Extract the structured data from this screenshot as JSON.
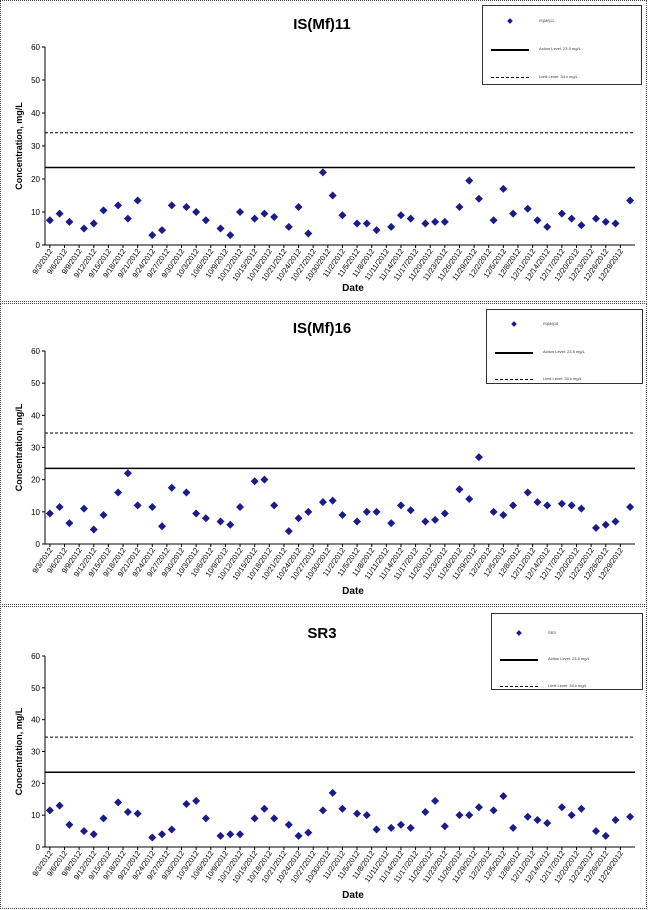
{
  "chart_data": [
    {
      "type": "scatter",
      "title": "IS(Mf)11",
      "xlabel": "Date",
      "ylabel": "Concentration, mg/L",
      "ylim": [
        0,
        60
      ],
      "yticks": [
        0,
        10,
        20,
        30,
        40,
        50,
        60
      ],
      "xtick_labels": [
        "9/3/2012",
        "9/6/2012",
        "9/9/2012",
        "9/12/2012",
        "9/15/2012",
        "9/18/2012",
        "9/21/2012",
        "9/24/2012",
        "9/27/2012",
        "9/30/2012",
        "10/3/2012",
        "10/6/2012",
        "10/9/2012",
        "10/12/2012",
        "10/15/2012",
        "10/18/2012",
        "10/21/2012",
        "10/24/2012",
        "10/27/2012",
        "10/30/2012",
        "11/2/2012",
        "11/5/2012",
        "11/8/2012",
        "11/11/2012",
        "11/14/2012",
        "11/17/2012",
        "11/20/2012",
        "11/23/2012",
        "11/26/2012",
        "11/29/2012",
        "12/2/2012",
        "12/5/2012",
        "12/8/2012",
        "12/11/2012",
        "12/14/2012",
        "12/17/2012",
        "12/20/2012",
        "12/23/2012",
        "12/26/2012",
        "12/29/2012"
      ],
      "series": [
        {
          "name": "IS(Mf)11",
          "color": "#1b1b8a",
          "x": [
            "9/3/2012",
            "9/5/2012",
            "9/7/2012",
            "9/10/2012",
            "9/12/2012",
            "9/14/2012",
            "9/17/2012",
            "9/19/2012",
            "9/21/2012",
            "9/24/2012",
            "9/26/2012",
            "9/28/2012",
            "10/1/2012",
            "10/3/2012",
            "10/5/2012",
            "10/8/2012",
            "10/10/2012",
            "10/12/2012",
            "10/15/2012",
            "10/17/2012",
            "10/19/2012",
            "10/22/2012",
            "10/24/2012",
            "10/26/2012",
            "10/29/2012",
            "10/31/2012",
            "11/2/2012",
            "11/5/2012",
            "11/7/2012",
            "11/9/2012",
            "11/12/2012",
            "11/14/2012",
            "11/16/2012",
            "11/19/2012",
            "11/21/2012",
            "11/23/2012",
            "11/26/2012",
            "11/28/2012",
            "11/30/2012",
            "12/3/2012",
            "12/5/2012",
            "12/7/2012",
            "12/10/2012",
            "12/12/2012",
            "12/14/2012",
            "12/17/2012",
            "12/19/2012",
            "12/21/2012",
            "12/24/2012",
            "12/26/2012",
            "12/28/2012",
            "12/31/2012"
          ],
          "y": [
            7.5,
            9.5,
            7,
            5,
            6.5,
            10.5,
            12,
            8,
            13.5,
            3,
            4.5,
            12,
            11.5,
            10,
            7.5,
            5,
            3,
            10,
            8,
            9.5,
            8.5,
            5.5,
            11.5,
            3.5,
            22,
            15,
            9,
            6.5,
            6.5,
            4.5,
            5.5,
            9,
            8,
            6.5,
            7,
            7,
            11.5,
            19.5,
            14,
            7.5,
            17,
            9.5,
            11,
            7.5,
            5.5,
            9.5,
            8,
            6,
            8,
            7,
            6.5,
            13.5
          ]
        },
        {
          "name": "Action Level: 23.5 mg/L",
          "constant": 23.5,
          "color": "#000000",
          "style": "solid"
        },
        {
          "name": "Limit Level: 34.x mg/L",
          "constant": 34,
          "color": "#000000",
          "style": "dashed"
        }
      ]
    },
    {
      "type": "scatter",
      "title": "IS(Mf)16",
      "xlabel": "Date",
      "ylabel": "Concentration, mg/L",
      "ylim": [
        0,
        60
      ],
      "yticks": [
        0,
        10,
        20,
        30,
        40,
        50,
        60
      ],
      "xtick_labels": [
        "9/3/2012",
        "9/6/2012",
        "9/9/2012",
        "9/12/2012",
        "9/15/2012",
        "9/18/2012",
        "9/21/2012",
        "9/24/2012",
        "9/27/2012",
        "9/30/2012",
        "10/3/2012",
        "10/6/2012",
        "10/9/2012",
        "10/12/2012",
        "10/15/2012",
        "10/18/2012",
        "10/21/2012",
        "10/24/2012",
        "10/27/2012",
        "10/30/2012",
        "11/2/2012",
        "11/5/2012",
        "11/8/2012",
        "11/11/2012",
        "11/14/2012",
        "11/17/2012",
        "11/20/2012",
        "11/23/2012",
        "11/26/2012",
        "11/29/2012",
        "12/2/2012",
        "12/5/2012",
        "12/8/2012",
        "12/11/2012",
        "12/14/2012",
        "12/17/2012",
        "12/20/2012",
        "12/23/2012",
        "12/26/2012",
        "12/29/2012"
      ],
      "series": [
        {
          "name": "IS(Mf)16",
          "color": "#1b1b8a",
          "x": [
            "9/3/2012",
            "9/5/2012",
            "9/7/2012",
            "9/10/2012",
            "9/12/2012",
            "9/14/2012",
            "9/17/2012",
            "9/19/2012",
            "9/21/2012",
            "9/24/2012",
            "9/26/2012",
            "9/28/2012",
            "10/1/2012",
            "10/3/2012",
            "10/5/2012",
            "10/8/2012",
            "10/10/2012",
            "10/12/2012",
            "10/15/2012",
            "10/17/2012",
            "10/19/2012",
            "10/22/2012",
            "10/24/2012",
            "10/26/2012",
            "10/29/2012",
            "10/31/2012",
            "11/2/2012",
            "11/5/2012",
            "11/7/2012",
            "11/9/2012",
            "11/12/2012",
            "11/14/2012",
            "11/16/2012",
            "11/19/2012",
            "11/21/2012",
            "11/23/2012",
            "11/26/2012",
            "11/28/2012",
            "11/30/2012",
            "12/3/2012",
            "12/5/2012",
            "12/7/2012",
            "12/10/2012",
            "12/12/2012",
            "12/14/2012",
            "12/17/2012",
            "12/19/2012",
            "12/21/2012",
            "12/24/2012",
            "12/26/2012",
            "12/28/2012",
            "12/31/2012"
          ],
          "y": [
            9.5,
            11.5,
            6.5,
            11,
            4.5,
            9,
            16,
            22,
            12,
            11.5,
            5.5,
            17.5,
            16,
            9.5,
            8,
            7,
            6,
            11.5,
            19.5,
            20,
            12,
            4,
            8,
            10,
            13,
            13.5,
            9,
            7,
            10,
            10,
            6.5,
            12,
            10.5,
            7,
            7.5,
            9.5,
            17,
            14,
            27,
            10,
            9,
            12,
            16,
            13,
            12,
            12.5,
            12,
            11,
            5,
            6,
            7,
            11.5
          ]
        },
        {
          "name": "Action Level: 23.5 mg/L",
          "constant": 23.5,
          "color": "#000000",
          "style": "solid"
        },
        {
          "name": "Limit Level: 34.x mg/L",
          "constant": 34.5,
          "color": "#000000",
          "style": "dashed"
        }
      ]
    },
    {
      "type": "scatter",
      "title": "SR3",
      "xlabel": "Date",
      "ylabel": "Concentration, mg/L",
      "ylim": [
        0,
        60
      ],
      "yticks": [
        0,
        10,
        20,
        30,
        40,
        50,
        60
      ],
      "xtick_labels": [
        "9/3/2012",
        "9/6/2012",
        "9/9/2012",
        "9/12/2012",
        "9/15/2012",
        "9/18/2012",
        "9/21/2012",
        "9/24/2012",
        "9/27/2012",
        "9/30/2012",
        "10/3/2012",
        "10/6/2012",
        "10/9/2012",
        "10/12/2012",
        "10/15/2012",
        "10/18/2012",
        "10/21/2012",
        "10/24/2012",
        "10/27/2012",
        "10/30/2012",
        "11/2/2012",
        "11/5/2012",
        "11/8/2012",
        "11/11/2012",
        "11/14/2012",
        "11/17/2012",
        "11/20/2012",
        "11/23/2012",
        "11/26/2012",
        "11/29/2012",
        "12/2/2012",
        "12/5/2012",
        "12/8/2012",
        "12/11/2012",
        "12/14/2012",
        "12/17/2012",
        "12/20/2012",
        "12/23/2012",
        "12/26/2012",
        "12/29/2012"
      ],
      "series": [
        {
          "name": "SR3",
          "color": "#1b1b8a",
          "x": [
            "9/3/2012",
            "9/5/2012",
            "9/7/2012",
            "9/10/2012",
            "9/12/2012",
            "9/14/2012",
            "9/17/2012",
            "9/19/2012",
            "9/21/2012",
            "9/24/2012",
            "9/26/2012",
            "9/28/2012",
            "10/1/2012",
            "10/3/2012",
            "10/5/2012",
            "10/8/2012",
            "10/10/2012",
            "10/12/2012",
            "10/15/2012",
            "10/17/2012",
            "10/19/2012",
            "10/22/2012",
            "10/24/2012",
            "10/26/2012",
            "10/29/2012",
            "10/31/2012",
            "11/2/2012",
            "11/5/2012",
            "11/7/2012",
            "11/9/2012",
            "11/12/2012",
            "11/14/2012",
            "11/16/2012",
            "11/19/2012",
            "11/21/2012",
            "11/23/2012",
            "11/26/2012",
            "11/28/2012",
            "11/30/2012",
            "12/3/2012",
            "12/5/2012",
            "12/7/2012",
            "12/10/2012",
            "12/12/2012",
            "12/14/2012",
            "12/17/2012",
            "12/19/2012",
            "12/21/2012",
            "12/24/2012",
            "12/26/2012",
            "12/28/2012",
            "12/31/2012"
          ],
          "y": [
            11.5,
            13,
            7,
            5,
            4,
            9,
            14,
            11,
            10.5,
            3,
            4,
            5.5,
            13.5,
            14.5,
            9,
            3.5,
            4,
            4,
            9,
            12,
            9,
            7,
            3.5,
            4.5,
            11.5,
            17,
            12,
            10.5,
            10,
            5.5,
            6,
            7,
            6,
            11,
            14.5,
            6.5,
            10,
            10,
            12.5,
            11.5,
            16,
            6,
            9.5,
            8.5,
            7.5,
            12.5,
            10,
            12,
            5,
            3.5,
            8.5,
            9.5
          ]
        },
        {
          "name": "Action Level: 23.5 mg/L",
          "constant": 23.5,
          "color": "#000000",
          "style": "solid"
        },
        {
          "name": "Limit Level: 34.x mg/L",
          "constant": 34.5,
          "color": "#000000",
          "style": "dashed"
        }
      ]
    }
  ]
}
